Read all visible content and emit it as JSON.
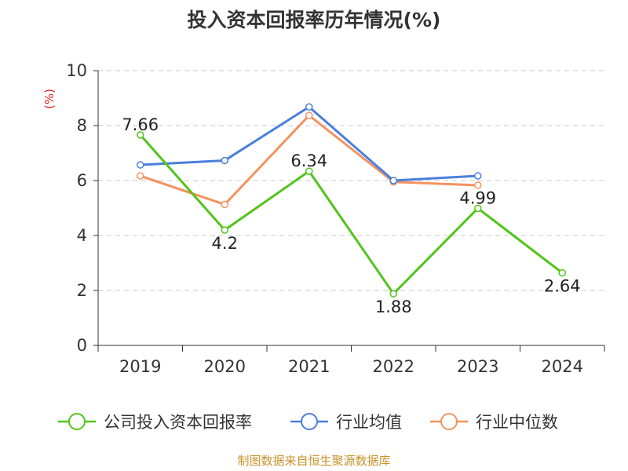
{
  "chart_data": {
    "type": "line",
    "title": "投入资本回报率历年情况(%)",
    "ylabel": "(%)",
    "xlabel": "",
    "ylim": [
      0,
      10
    ],
    "yticks": [
      0,
      2,
      4,
      6,
      8,
      10
    ],
    "categories": [
      "2019",
      "2020",
      "2021",
      "2022",
      "2023",
      "2024"
    ],
    "grid": true,
    "legend_position": "bottom",
    "series": [
      {
        "name": "公司投入资本回报率",
        "color": "#52c41a",
        "values": [
          7.66,
          4.2,
          6.34,
          1.88,
          4.99,
          2.64
        ],
        "labels": [
          "7.66",
          "4.2",
          "6.34",
          "1.88",
          "4.99",
          "2.64"
        ]
      },
      {
        "name": "行业均值",
        "color": "#4a7fdc",
        "values": [
          6.57,
          6.73,
          8.68,
          6.0,
          6.17,
          null
        ]
      },
      {
        "name": "行业中位数",
        "color": "#f4925e",
        "values": [
          6.17,
          5.13,
          8.37,
          5.95,
          5.83,
          null
        ]
      }
    ],
    "source": "制图数据来自恒生聚源数据库",
    "source_color": "#c8922a",
    "ylabel_color": "#e02020"
  }
}
